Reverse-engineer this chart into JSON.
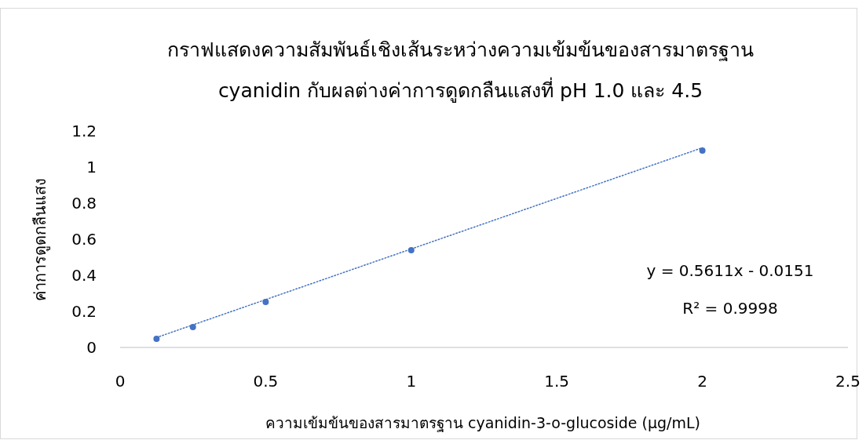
{
  "chart_data": {
    "type": "scatter",
    "title": "กราฟแสดงความสัมพันธ์เชิงเส้นระหว่างความเข้มข้นของสารมาตรฐาน\ncyanidin กับผลต่างค่าการดูดกลืนแสงที่ pH 1.0 และ 4.5",
    "xlabel": "ความเข้มข้นของสารมาตรฐาน cyanidin-3-o-glucoside (µg/mL)",
    "ylabel": "ค่าการดูดกลืนแสง",
    "annotations": [
      "y = 0.5611x - 0.0151",
      "R² = 0.9998"
    ],
    "xlim": [
      0,
      2.5
    ],
    "xticks": [
      0,
      0.5,
      1,
      1.5,
      2,
      2.5
    ],
    "ylim": [
      0,
      1.2
    ],
    "yticks": [
      0,
      0.2,
      0.4,
      0.6,
      0.8,
      1,
      1.2
    ],
    "grid": false,
    "marker": "circle",
    "series": [
      {
        "color": "#4472c4",
        "x": [
          0.125,
          0.25,
          0.5,
          1,
          2
        ],
        "values": [
          0.048,
          0.113,
          0.252,
          0.539,
          1.091
        ]
      },
      {
        "type": "line",
        "color": "#4472c4",
        "line_style": "dotted",
        "marker": "none",
        "x": [
          0.125,
          2
        ],
        "values": [
          0.055,
          1.107
        ]
      }
    ]
  }
}
